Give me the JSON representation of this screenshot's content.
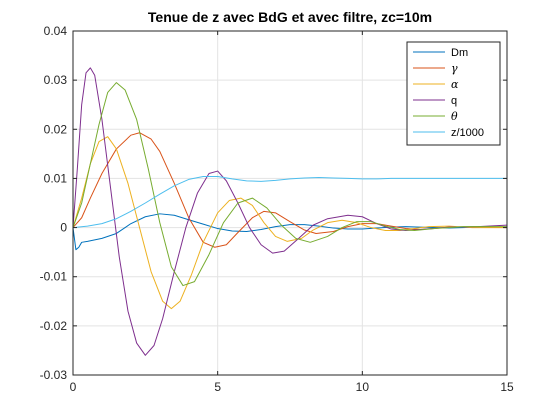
{
  "chart_data": {
    "type": "line",
    "title": "Tenue de z avec BdG et avec filtre, zc=10m",
    "xlabel": "",
    "ylabel": "",
    "xlim": [
      0,
      15
    ],
    "ylim": [
      -0.03,
      0.04
    ],
    "grid": true,
    "legend_position": "top-right",
    "x_ticks": [
      0,
      5,
      10,
      15
    ],
    "y_ticks": [
      -0.03,
      -0.02,
      -0.01,
      0,
      0.01,
      0.02,
      0.03,
      0.04
    ],
    "x_tick_labels": [
      "0",
      "5",
      "10",
      "15"
    ],
    "y_tick_labels": [
      "-0.03",
      "-0.02",
      "-0.01",
      "0",
      "0.01",
      "0.02",
      "0.03",
      "0.04"
    ],
    "series": [
      {
        "name": "Dm",
        "color": "#0072bd",
        "points": [
          [
            0,
            0
          ],
          [
            0.1,
            -0.0045
          ],
          [
            0.2,
            -0.004
          ],
          [
            0.3,
            -0.003
          ],
          [
            0.5,
            -0.0028
          ],
          [
            1,
            -0.0022
          ],
          [
            1.5,
            -0.0012
          ],
          [
            2,
            0.0008
          ],
          [
            2.5,
            0.0022
          ],
          [
            3,
            0.0028
          ],
          [
            3.5,
            0.0025
          ],
          [
            4,
            0.0016
          ],
          [
            4.5,
            0.0007
          ],
          [
            5,
            -0.0002
          ],
          [
            5.5,
            -0.0007
          ],
          [
            6,
            -0.0008
          ],
          [
            6.5,
            -0.0004
          ],
          [
            7,
            0.0002
          ],
          [
            7.5,
            0.0006
          ],
          [
            8,
            0.0006
          ],
          [
            8.5,
            0.0003
          ],
          [
            9,
            -0.0001
          ],
          [
            9.5,
            -0.0003
          ],
          [
            10,
            -0.0003
          ],
          [
            10.5,
            -0.0001
          ],
          [
            11,
            0.0001
          ],
          [
            11.5,
            0.0002
          ],
          [
            12,
            0.0001
          ],
          [
            13,
            -0.0001
          ],
          [
            14,
            0.0001
          ],
          [
            15,
            0.0001
          ]
        ]
      },
      {
        "name": "γ",
        "color": "#d95319",
        "points": [
          [
            0,
            0
          ],
          [
            0.3,
            0.002
          ],
          [
            0.6,
            0.006
          ],
          [
            1,
            0.011
          ],
          [
            1.5,
            0.016
          ],
          [
            2,
            0.0188
          ],
          [
            2.3,
            0.0193
          ],
          [
            2.7,
            0.018
          ],
          [
            3,
            0.0155
          ],
          [
            3.5,
            0.009
          ],
          [
            4,
            0.002
          ],
          [
            4.5,
            -0.003
          ],
          [
            4.9,
            -0.004
          ],
          [
            5.3,
            -0.0035
          ],
          [
            5.7,
            -0.001
          ],
          [
            6.2,
            0.002
          ],
          [
            6.6,
            0.0033
          ],
          [
            7,
            0.003
          ],
          [
            7.5,
            0.0012
          ],
          [
            8,
            -0.0005
          ],
          [
            8.4,
            -0.0012
          ],
          [
            9,
            -0.0008
          ],
          [
            9.5,
            0.0002
          ],
          [
            10,
            0.0008
          ],
          [
            10.5,
            0.0008
          ],
          [
            11,
            0.0003
          ],
          [
            11.5,
            -0.0002
          ],
          [
            12,
            -0.0004
          ],
          [
            12.5,
            -0.0002
          ],
          [
            13,
            0.0001
          ],
          [
            14,
            0.0002
          ],
          [
            15,
            0
          ]
        ]
      },
      {
        "name": "α",
        "color": "#edb120",
        "points": [
          [
            0,
            0
          ],
          [
            0.3,
            0.006
          ],
          [
            0.6,
            0.013
          ],
          [
            0.9,
            0.0175
          ],
          [
            1.2,
            0.0185
          ],
          [
            1.5,
            0.016
          ],
          [
            1.9,
            0.009
          ],
          [
            2.3,
            0
          ],
          [
            2.7,
            -0.009
          ],
          [
            3.1,
            -0.015
          ],
          [
            3.4,
            -0.0165
          ],
          [
            3.7,
            -0.015
          ],
          [
            4.1,
            -0.0095
          ],
          [
            4.5,
            -0.003
          ],
          [
            5,
            0.003
          ],
          [
            5.4,
            0.0055
          ],
          [
            5.8,
            0.006
          ],
          [
            6.2,
            0.0045
          ],
          [
            6.6,
            0.001
          ],
          [
            7,
            -0.0018
          ],
          [
            7.4,
            -0.0028
          ],
          [
            7.9,
            -0.0022
          ],
          [
            8.3,
            -0.0005
          ],
          [
            8.8,
            0.001
          ],
          [
            9.3,
            0.0015
          ],
          [
            9.8,
            0.001
          ],
          [
            10.3,
            0
          ],
          [
            10.8,
            -0.0006
          ],
          [
            11.3,
            -0.0006
          ],
          [
            11.8,
            -0.0002
          ],
          [
            12.3,
            0.0002
          ],
          [
            13,
            0.0003
          ],
          [
            13.8,
            0
          ],
          [
            15,
            0
          ]
        ]
      },
      {
        "name": "q",
        "color": "#7e2f8e",
        "points": [
          [
            0,
            0
          ],
          [
            0.15,
            0.012
          ],
          [
            0.3,
            0.025
          ],
          [
            0.45,
            0.0315
          ],
          [
            0.6,
            0.0325
          ],
          [
            0.75,
            0.031
          ],
          [
            1,
            0.022
          ],
          [
            1.3,
            0.008
          ],
          [
            1.6,
            -0.006
          ],
          [
            1.9,
            -0.017
          ],
          [
            2.2,
            -0.0235
          ],
          [
            2.5,
            -0.026
          ],
          [
            2.8,
            -0.024
          ],
          [
            3.1,
            -0.0185
          ],
          [
            3.5,
            -0.009
          ],
          [
            3.9,
            0
          ],
          [
            4.3,
            0.007
          ],
          [
            4.7,
            0.011
          ],
          [
            5,
            0.0115
          ],
          [
            5.3,
            0.0095
          ],
          [
            5.7,
            0.005
          ],
          [
            6.1,
            0
          ],
          [
            6.5,
            -0.0035
          ],
          [
            6.9,
            -0.0052
          ],
          [
            7.3,
            -0.0048
          ],
          [
            7.8,
            -0.0022
          ],
          [
            8.3,
            0.0005
          ],
          [
            8.8,
            0.0018
          ],
          [
            9.5,
            0.0025
          ],
          [
            10,
            0.0022
          ],
          [
            10.5,
            0.0008
          ],
          [
            11,
            -0.0003
          ],
          [
            11.5,
            -0.0006
          ],
          [
            12,
            -0.0004
          ],
          [
            13,
            0.0001
          ],
          [
            14,
            0.0002
          ],
          [
            15,
            0.0005
          ]
        ]
      },
      {
        "name": "θ",
        "color": "#77ac30",
        "points": [
          [
            0,
            0
          ],
          [
            0.3,
            0.005
          ],
          [
            0.6,
            0.013
          ],
          [
            0.9,
            0.021
          ],
          [
            1.2,
            0.0275
          ],
          [
            1.5,
            0.0295
          ],
          [
            1.8,
            0.028
          ],
          [
            2.2,
            0.022
          ],
          [
            2.6,
            0.012
          ],
          [
            3,
            0.001
          ],
          [
            3.4,
            -0.008
          ],
          [
            3.8,
            -0.0118
          ],
          [
            4.2,
            -0.011
          ],
          [
            4.7,
            -0.0055
          ],
          [
            5.2,
            0.001
          ],
          [
            5.7,
            0.005
          ],
          [
            6.2,
            0.006
          ],
          [
            6.7,
            0.004
          ],
          [
            7.2,
            0.0005
          ],
          [
            7.7,
            -0.0022
          ],
          [
            8.2,
            -0.003
          ],
          [
            8.8,
            -0.0018
          ],
          [
            9.3,
            0
          ],
          [
            9.8,
            0.0012
          ],
          [
            10.3,
            0.0012
          ],
          [
            10.8,
            0.0003
          ],
          [
            11.3,
            -0.0004
          ],
          [
            11.8,
            -0.0006
          ],
          [
            12.5,
            -0.0002
          ],
          [
            13.5,
            0.0002
          ],
          [
            15,
            0.0002
          ]
        ]
      },
      {
        "name": "z/1000",
        "color": "#4dbeee",
        "points": [
          [
            0,
            0
          ],
          [
            0.5,
            0.0003
          ],
          [
            1,
            0.0008
          ],
          [
            1.5,
            0.0018
          ],
          [
            2,
            0.0033
          ],
          [
            2.5,
            0.005
          ],
          [
            3,
            0.0068
          ],
          [
            3.5,
            0.0085
          ],
          [
            4,
            0.0098
          ],
          [
            4.5,
            0.0104
          ],
          [
            5,
            0.0104
          ],
          [
            5.5,
            0.0099
          ],
          [
            6,
            0.0095
          ],
          [
            6.5,
            0.0094
          ],
          [
            7,
            0.0096
          ],
          [
            7.5,
            0.0099
          ],
          [
            8,
            0.0101
          ],
          [
            8.5,
            0.0102
          ],
          [
            9,
            0.0101
          ],
          [
            9.5,
            0.01
          ],
          [
            10,
            0.0099
          ],
          [
            10.5,
            0.0099
          ],
          [
            11,
            0.01
          ],
          [
            11.5,
            0.01
          ],
          [
            12,
            0.01
          ],
          [
            13,
            0.01
          ],
          [
            14,
            0.01
          ],
          [
            15,
            0.01
          ]
        ]
      }
    ]
  }
}
